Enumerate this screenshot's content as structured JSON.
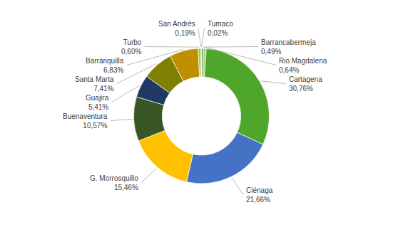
{
  "chart_data": {
    "type": "donut",
    "categories": [
      "Tumaco",
      "Barrancabermeja",
      "Rio Magdalena",
      "Cartagena",
      "Ciénaga",
      "G. Morrosquillo",
      "Buenaventura",
      "Guajira",
      "Santa Marta",
      "Barranquilla",
      "Turbo",
      "San Andrés"
    ],
    "values": [
      0.02,
      0.49,
      0.64,
      30.76,
      21.66,
      15.46,
      10.57,
      5.41,
      7.41,
      6.83,
      0.6,
      0.19
    ],
    "value_labels": [
      "0,02%",
      "0,49%",
      "0,64%",
      "30,76%",
      "21,66%",
      "15,46%",
      "10,57%",
      "5,41%",
      "7,41%",
      "6,83%",
      "0,60%",
      "0,19%"
    ],
    "colors": [
      "#92D050",
      "#70AD47",
      "#A9D18E",
      "#4EA72A",
      "#4472C4",
      "#FFC000",
      "#375623",
      "#1F3864",
      "#7F7F00",
      "#BF8F00",
      "#92D050",
      "#70AD47"
    ],
    "data_labels": true
  }
}
